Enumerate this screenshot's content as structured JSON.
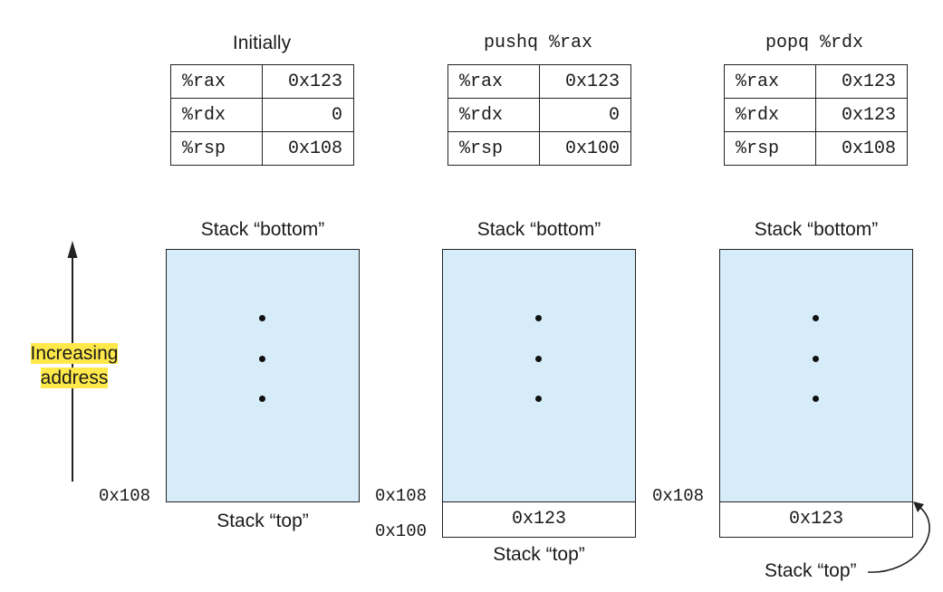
{
  "panels": [
    {
      "title": "Initially",
      "registers": [
        {
          "name": "%rax",
          "value": "0x123"
        },
        {
          "name": "%rdx",
          "value": "0"
        },
        {
          "name": "%rsp",
          "value": "0x108"
        }
      ],
      "stack_bottom_label": "Stack “bottom”",
      "stack_top_label": "Stack “top”",
      "addresses": [
        "0x108"
      ],
      "slots": []
    },
    {
      "title": "pushq %rax",
      "registers": [
        {
          "name": "%rax",
          "value": "0x123"
        },
        {
          "name": "%rdx",
          "value": "0"
        },
        {
          "name": "%rsp",
          "value": "0x100"
        }
      ],
      "stack_bottom_label": "Stack “bottom”",
      "stack_top_label": "Stack “top”",
      "addresses": [
        "0x108",
        "0x100"
      ],
      "slots": [
        "0x123"
      ]
    },
    {
      "title": "popq %rdx",
      "registers": [
        {
          "name": "%rax",
          "value": "0x123"
        },
        {
          "name": "%rdx",
          "value": "0x123"
        },
        {
          "name": "%rsp",
          "value": "0x108"
        }
      ],
      "stack_bottom_label": "Stack “bottom”",
      "stack_top_label": "Stack “top”",
      "addresses": [
        "0x108"
      ],
      "slots": [
        "0x123"
      ]
    }
  ],
  "axis": {
    "label_line1": "Increasing",
    "label_line2": "address",
    "highlight_color": "#ffe94a"
  },
  "colors": {
    "stack_fill": "#d6ecf8",
    "line": "#222222"
  }
}
